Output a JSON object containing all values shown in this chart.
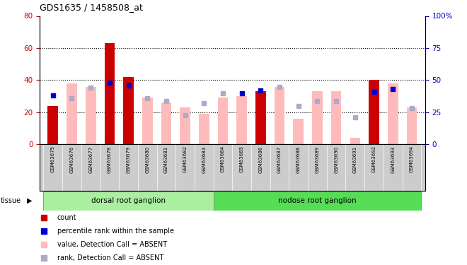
{
  "title": "GDS1635 / 1458508_at",
  "samples": [
    "GSM63675",
    "GSM63676",
    "GSM63677",
    "GSM63678",
    "GSM63679",
    "GSM63680",
    "GSM63681",
    "GSM63682",
    "GSM63683",
    "GSM63684",
    "GSM63685",
    "GSM63686",
    "GSM63687",
    "GSM63688",
    "GSM63689",
    "GSM63690",
    "GSM63691",
    "GSM63692",
    "GSM63693",
    "GSM63694"
  ],
  "red_bars": [
    24,
    0,
    0,
    63,
    42,
    0,
    0,
    0,
    0,
    0,
    0,
    33,
    0,
    0,
    0,
    0,
    0,
    40,
    0,
    0
  ],
  "pink_bars": [
    0,
    38,
    36,
    0,
    0,
    29,
    26,
    23,
    19,
    29,
    30,
    0,
    36,
    16,
    33,
    33,
    4,
    0,
    38,
    23
  ],
  "blue_sq": [
    38,
    0,
    0,
    48,
    46,
    0,
    0,
    0,
    0,
    0,
    40,
    42,
    0,
    0,
    0,
    0,
    0,
    41,
    43,
    0
  ],
  "lblue_sq": [
    0,
    36,
    44,
    0,
    0,
    36,
    34,
    23,
    32,
    40,
    0,
    0,
    45,
    30,
    34,
    34,
    21,
    0,
    0,
    28
  ],
  "ylim_left": [
    0,
    80
  ],
  "ylim_right": [
    0,
    100
  ],
  "yticks_left": [
    0,
    20,
    40,
    60,
    80
  ],
  "yticks_right": [
    0,
    25,
    50,
    75,
    100
  ],
  "ytick_labels_right": [
    "0",
    "25",
    "50",
    "75",
    "100%"
  ],
  "groups": [
    {
      "label": "dorsal root ganglion",
      "start": 0,
      "end": 8,
      "color": "#aaeea0"
    },
    {
      "label": "nodose root ganglion",
      "start": 9,
      "end": 19,
      "color": "#55dd55"
    }
  ],
  "red_color": "#cc0000",
  "pink_color": "#ffbbbb",
  "blue_color": "#0000cc",
  "lblue_color": "#aaaacc",
  "xtick_bg": "#cccccc",
  "plot_bg": "#ffffff"
}
